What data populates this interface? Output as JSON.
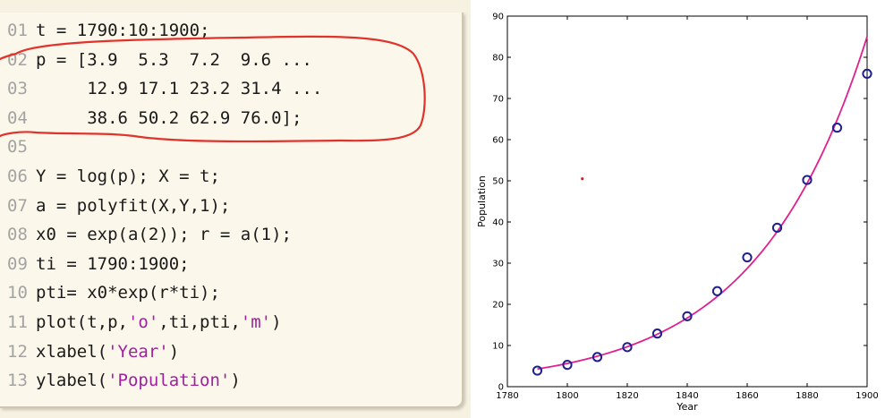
{
  "code": {
    "lines": [
      {
        "num": "01",
        "parts": [
          {
            "t": "t = 1790:10:1900;"
          }
        ]
      },
      {
        "num": "02",
        "parts": [
          {
            "t": "p = [3.9  5.3  7.2  9.6 ..."
          }
        ]
      },
      {
        "num": "03",
        "parts": [
          {
            "t": "     12.9 17.1 23.2 31.4 ..."
          }
        ]
      },
      {
        "num": "04",
        "parts": [
          {
            "t": "     38.6 50.2 62.9 76.0];"
          }
        ]
      },
      {
        "num": "05",
        "parts": [
          {
            "t": ""
          }
        ]
      },
      {
        "num": "06",
        "parts": [
          {
            "t": "Y = log(p); X = t;"
          }
        ]
      },
      {
        "num": "07",
        "parts": [
          {
            "t": "a = polyfit(X,Y,1);"
          }
        ]
      },
      {
        "num": "08",
        "parts": [
          {
            "t": "x0 = exp(a(2)); r = a(1);"
          }
        ]
      },
      {
        "num": "09",
        "parts": [
          {
            "t": "ti = 1790:1900;"
          }
        ]
      },
      {
        "num": "10",
        "parts": [
          {
            "t": "pti= x0*exp(r*ti);"
          }
        ]
      },
      {
        "num": "11",
        "parts": [
          {
            "t": "plot(t,p,"
          },
          {
            "t": "'o'",
            "s": true
          },
          {
            "t": ",ti,pti,"
          },
          {
            "t": "'m'",
            "s": true
          },
          {
            "t": ")"
          }
        ]
      },
      {
        "num": "12",
        "parts": [
          {
            "t": "xlabel("
          },
          {
            "t": "'Year'",
            "s": true
          },
          {
            "t": ")"
          }
        ]
      },
      {
        "num": "13",
        "parts": [
          {
            "t": "ylabel("
          },
          {
            "t": "'Population'",
            "s": true
          },
          {
            "t": ")"
          }
        ]
      }
    ]
  },
  "annotation_color": "#e0332b",
  "string_color": "#a020a0",
  "chart_data": {
    "type": "scatter",
    "xlabel": "Year",
    "ylabel": "Population",
    "xlim": [
      1780,
      1900
    ],
    "ylim": [
      0,
      90
    ],
    "xticks": [
      1780,
      1800,
      1820,
      1840,
      1860,
      1880,
      1900
    ],
    "yticks": [
      0,
      10,
      20,
      30,
      40,
      50,
      60,
      70,
      80,
      90
    ],
    "grid": false,
    "series": [
      {
        "type": "scatter",
        "marker": "o",
        "color": "#1f1f8f",
        "x": [
          1790,
          1800,
          1810,
          1820,
          1830,
          1840,
          1850,
          1860,
          1870,
          1880,
          1890,
          1900
        ],
        "y": [
          3.9,
          5.3,
          7.2,
          9.6,
          12.9,
          17.1,
          23.2,
          31.4,
          38.6,
          50.2,
          62.9,
          76.0
        ]
      },
      {
        "type": "line",
        "color": "#e0208f",
        "x_start": 1790,
        "x_end": 1900,
        "y_start": 4.3,
        "y_end": 85.0
      }
    ],
    "stray_point": {
      "x": 1805,
      "y": 50.5,
      "color": "#cc2222"
    }
  }
}
